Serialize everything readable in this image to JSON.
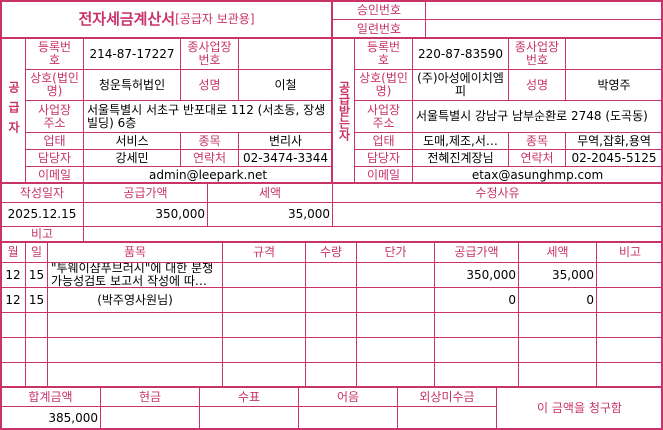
{
  "title": "전자세금계산서",
  "subtitle": "[공급자 보관용]",
  "approval_label": "승인번호",
  "approval_value": "",
  "serial_label": "일련번호",
  "serial_value": "",
  "supplier": {
    "side_label": "공급자",
    "reg_label": "등록번호",
    "reg_no": "214-87-17227",
    "sub_label": "종사업장번호",
    "sub_no": "",
    "name_label": "상호(법인명)",
    "name": "청운특허법인",
    "rep_label": "성명",
    "rep": "이철",
    "addr_label": "사업장주소",
    "addr": "서울특별시 서초구 반포대로 112 (서초동, 장생빌딩) 6층",
    "type_label": "업태",
    "type": "서비스",
    "item_label": "종목",
    "item": "변리사",
    "contact_label": "담당자",
    "contact": "강세민",
    "phone_label": "연락처",
    "phone": "02-3474-3344",
    "email_label": "이메일",
    "email": "admin@leepark.net"
  },
  "receiver": {
    "side_label": "공급받는자",
    "reg_label": "등록번호",
    "reg_no": "220-87-83590",
    "sub_label": "종사업장번호",
    "sub_no": "",
    "name_label": "상호(법인명)",
    "name": "(주)아성에이치엠피",
    "rep_label": "성명",
    "rep": "박영주",
    "addr_label": "사업장주소",
    "addr": "서울특별시 강남구 남부순환로 2748 (도곡동)",
    "type_label": "업태",
    "type": "도매,제조,서…",
    "item_label": "종목",
    "item": "무역,잡화,용역",
    "contact_label": "담당자",
    "contact": "전혜진계장님",
    "phone_label": "연락처",
    "phone": "02-2045-5125",
    "email_label": "이메일",
    "email": "etax@asunghmp.com"
  },
  "summary": {
    "date_label": "작성일자",
    "date": "2025.12.15",
    "supply_label": "공급가액",
    "supply": "350,000",
    "tax_label": "세액",
    "tax": "35,000",
    "reason_label": "수정사유",
    "reason": "",
    "note_label": "비고",
    "note": ""
  },
  "items_header": [
    "월",
    "일",
    "품목",
    "규격",
    "수량",
    "단가",
    "공급가액",
    "세액",
    "비고"
  ],
  "items": [
    [
      "12",
      "15",
      "\"투웨이샴푸브러시\"에 대한 분쟁가능성검토 보고서 작성에 따…",
      "",
      "",
      "",
      "350,000",
      "35,000",
      ""
    ],
    [
      "12",
      "15",
      "(박주영사원님)",
      "",
      "",
      "",
      "0",
      "0",
      ""
    ],
    [
      "",
      "",
      "",
      "",
      "",
      "",
      "",
      "",
      ""
    ],
    [
      "",
      "",
      "",
      "",
      "",
      "",
      "",
      "",
      ""
    ],
    [
      "",
      "",
      "",
      "",
      "",
      "",
      "",
      "",
      ""
    ]
  ],
  "footer": {
    "total_label": "합계금액",
    "total": "385,000",
    "cash_label": "현금",
    "cash": "",
    "check_label": "수표",
    "check": "",
    "note_label": "어음",
    "note": "",
    "credit_label": "외상미수금",
    "credit": "",
    "claim": "이 금액을 청구함"
  },
  "colors": {
    "border": "#c8336a",
    "label": "#c8336a"
  }
}
